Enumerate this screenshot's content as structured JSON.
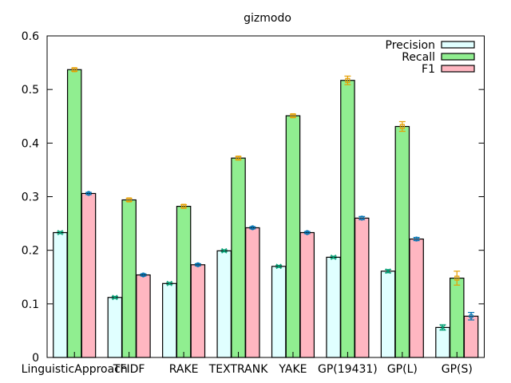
{
  "chart_data": {
    "type": "bar",
    "title": "gizmodo",
    "xlabel": "",
    "ylabel": "",
    "ylim": [
      0,
      0.6
    ],
    "yticks": [
      "0",
      "0.1",
      "0.2",
      "0.3",
      "0.4",
      "0.5",
      "0.6"
    ],
    "grid": false,
    "legend_position": "top-right",
    "categories": [
      "LinguisticApproach",
      "TFIDF",
      "RAKE",
      "TEXTRANK",
      "YAKE",
      "GP(19431)",
      "GP(L)",
      "GP(S)"
    ],
    "series": [
      {
        "name": "Precision",
        "color": "#e0ffff",
        "error_color": "#009e73",
        "error_marker": "x",
        "values": [
          0.233,
          0.112,
          0.138,
          0.199,
          0.17,
          0.187,
          0.161,
          0.056
        ],
        "errors": [
          0.002,
          0.002,
          0.002,
          0.002,
          0.002,
          0.002,
          0.003,
          0.005
        ]
      },
      {
        "name": "Recall",
        "color": "#90ee90",
        "error_color": "#e69f00",
        "error_marker": "square",
        "values": [
          0.537,
          0.294,
          0.282,
          0.372,
          0.451,
          0.517,
          0.431,
          0.148
        ],
        "errors": [
          0.003,
          0.003,
          0.003,
          0.003,
          0.003,
          0.008,
          0.009,
          0.013
        ]
      },
      {
        "name": "F1",
        "color": "#ffb6c1",
        "error_color": "#0072b2",
        "error_marker": "circle",
        "values": [
          0.306,
          0.154,
          0.173,
          0.242,
          0.233,
          0.26,
          0.221,
          0.077
        ],
        "errors": [
          0.002,
          0.002,
          0.002,
          0.002,
          0.002,
          0.003,
          0.003,
          0.007
        ]
      }
    ]
  }
}
